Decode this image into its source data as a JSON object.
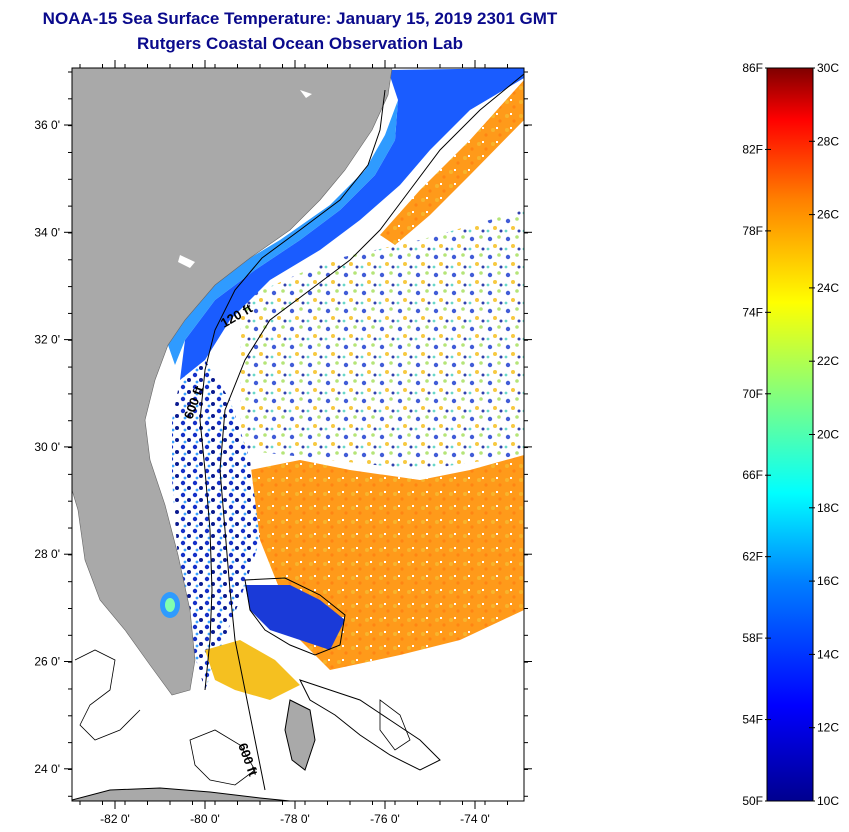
{
  "header": {
    "title_line1": "NOAA-15 Sea Surface Temperature:  January 15, 2019 2301 GMT",
    "title_line2": "Rutgers Coastal Ocean Observation Lab"
  },
  "map": {
    "lat_labels": [
      "36 0'",
      "34 0'",
      "32 0'",
      "30 0'",
      "28 0'",
      "26 0'",
      "24 0'"
    ],
    "lon_labels": [
      "-82 0'",
      "-80 0'",
      "-78 0'",
      "-76 0'",
      "-74 0'"
    ],
    "contour_labels": [
      "120 ft",
      "600 ft",
      "600 ft"
    ],
    "colors": {
      "land": "#a9a9a9",
      "cloud": "#ffffff",
      "cold_shelf": "#1a5cff",
      "nearshore": "#2f9bff",
      "warm_stream": "#ff9a1a",
      "mid": "#f5c020"
    }
  },
  "colorbar": {
    "fahrenheit_labels": [
      "86F",
      "82F",
      "78F",
      "74F",
      "70F",
      "66F",
      "62F",
      "58F",
      "54F",
      "50F"
    ],
    "celsius_labels": [
      "30C",
      "28C",
      "26C",
      "24C",
      "22C",
      "20C",
      "18C",
      "16C",
      "14C",
      "12C",
      "10C"
    ],
    "stops": [
      "#7f0000",
      "#ff0000",
      "#ff8000",
      "#ffff00",
      "#80ff80",
      "#00ffff",
      "#0080ff",
      "#0000ff",
      "#00008f"
    ]
  }
}
